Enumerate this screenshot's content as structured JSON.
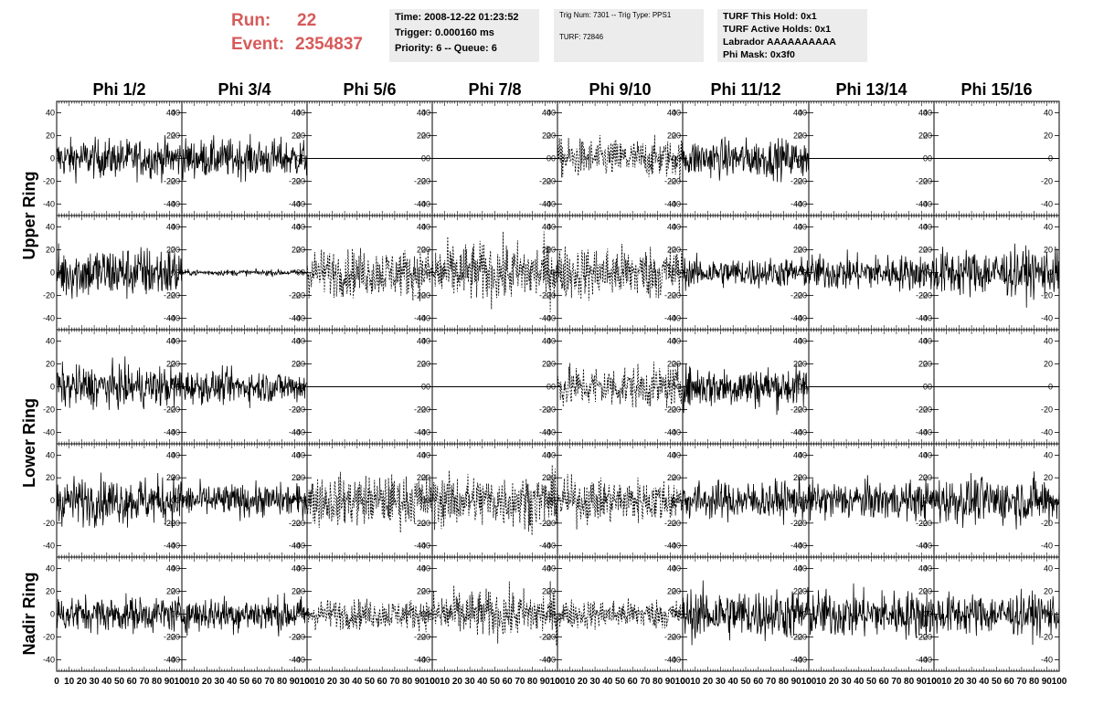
{
  "header": {
    "run_key": "Run:",
    "run_value": "22",
    "event_key": "Event:",
    "event_value": "2354837",
    "time_box": [
      "Time: 2008-12-22 01:23:52",
      "Trigger: 0.000160 ms",
      "Priority: 6 -- Queue: 6"
    ],
    "trig_box": [
      "Trig Num: 7301 -- Trig Type: PPS1",
      "",
      "TURF: 72846"
    ],
    "turf_box": [
      "TURF This Hold: 0x1",
      "TURF Active Holds: 0x1",
      "Labrador AAAAAAAAAA",
      "Phi Mask: 0x3f0"
    ]
  },
  "chart_data": {
    "type": "line",
    "columns": [
      "Phi 1/2",
      "Phi 3/4",
      "Phi 5/6",
      "Phi 7/8",
      "Phi 9/10",
      "Phi 11/12",
      "Phi 13/14",
      "Phi 15/16"
    ],
    "ring_labels": [
      "Upper Ring",
      "Lower Ring",
      "Nadir Ring"
    ],
    "ylim": [
      -50,
      50
    ],
    "xlim": [
      0,
      100
    ],
    "yticks": [
      -40,
      -20,
      0,
      20,
      40
    ],
    "xtick_labels": [
      "0",
      "10",
      "20",
      "30",
      "40",
      "50",
      "60",
      "70",
      "80",
      "90",
      "100"
    ],
    "rows": [
      {
        "ring": "Upper Ring",
        "channels": [
          {
            "style": "solid",
            "amp": 13
          },
          {
            "style": "solid",
            "amp": 13
          },
          {
            "style": "flat",
            "amp": 0
          },
          {
            "style": "flat",
            "amp": 0
          },
          {
            "style": "dashed",
            "amp": 13
          },
          {
            "style": "solid",
            "amp": 13
          },
          {
            "style": "flat",
            "amp": 0
          },
          {
            "style": "flat",
            "amp": 0
          }
        ]
      },
      {
        "ring": "Upper Ring",
        "channels": [
          {
            "style": "solid",
            "amp": 18
          },
          {
            "style": "solid",
            "amp": 2
          },
          {
            "style": "dashed",
            "amp": 16
          },
          {
            "style": "dashed",
            "amp": 20
          },
          {
            "style": "dashed",
            "amp": 18
          },
          {
            "style": "solid",
            "amp": 10
          },
          {
            "style": "solid",
            "amp": 12
          },
          {
            "style": "solid",
            "amp": 16
          }
        ]
      },
      {
        "ring": "Lower Ring",
        "channels": [
          {
            "style": "solid",
            "amp": 14
          },
          {
            "style": "solid",
            "amp": 11
          },
          {
            "style": "flat",
            "amp": 0
          },
          {
            "style": "flat",
            "amp": 0
          },
          {
            "style": "dashed",
            "amp": 14
          },
          {
            "style": "solid",
            "amp": 14
          },
          {
            "style": "flat",
            "amp": 0
          },
          {
            "style": "flat",
            "amp": 0
          }
        ]
      },
      {
        "ring": "Lower Ring",
        "channels": [
          {
            "style": "solid",
            "amp": 16
          },
          {
            "style": "solid",
            "amp": 11
          },
          {
            "style": "dashed",
            "amp": 17
          },
          {
            "style": "dashed",
            "amp": 18
          },
          {
            "style": "dashed",
            "amp": 15
          },
          {
            "style": "solid",
            "amp": 13
          },
          {
            "style": "solid",
            "amp": 13
          },
          {
            "style": "solid",
            "amp": 16
          }
        ]
      },
      {
        "ring": "Nadir Ring",
        "channels": [
          {
            "style": "solid",
            "amp": 12
          },
          {
            "style": "solid",
            "amp": 12
          },
          {
            "style": "dashed",
            "amp": 10
          },
          {
            "style": "dashed",
            "amp": 16
          },
          {
            "style": "dashed",
            "amp": 10
          },
          {
            "style": "solid",
            "amp": 17
          },
          {
            "style": "solid",
            "amp": 16
          },
          {
            "style": "solid",
            "amp": 14
          }
        ]
      }
    ]
  }
}
